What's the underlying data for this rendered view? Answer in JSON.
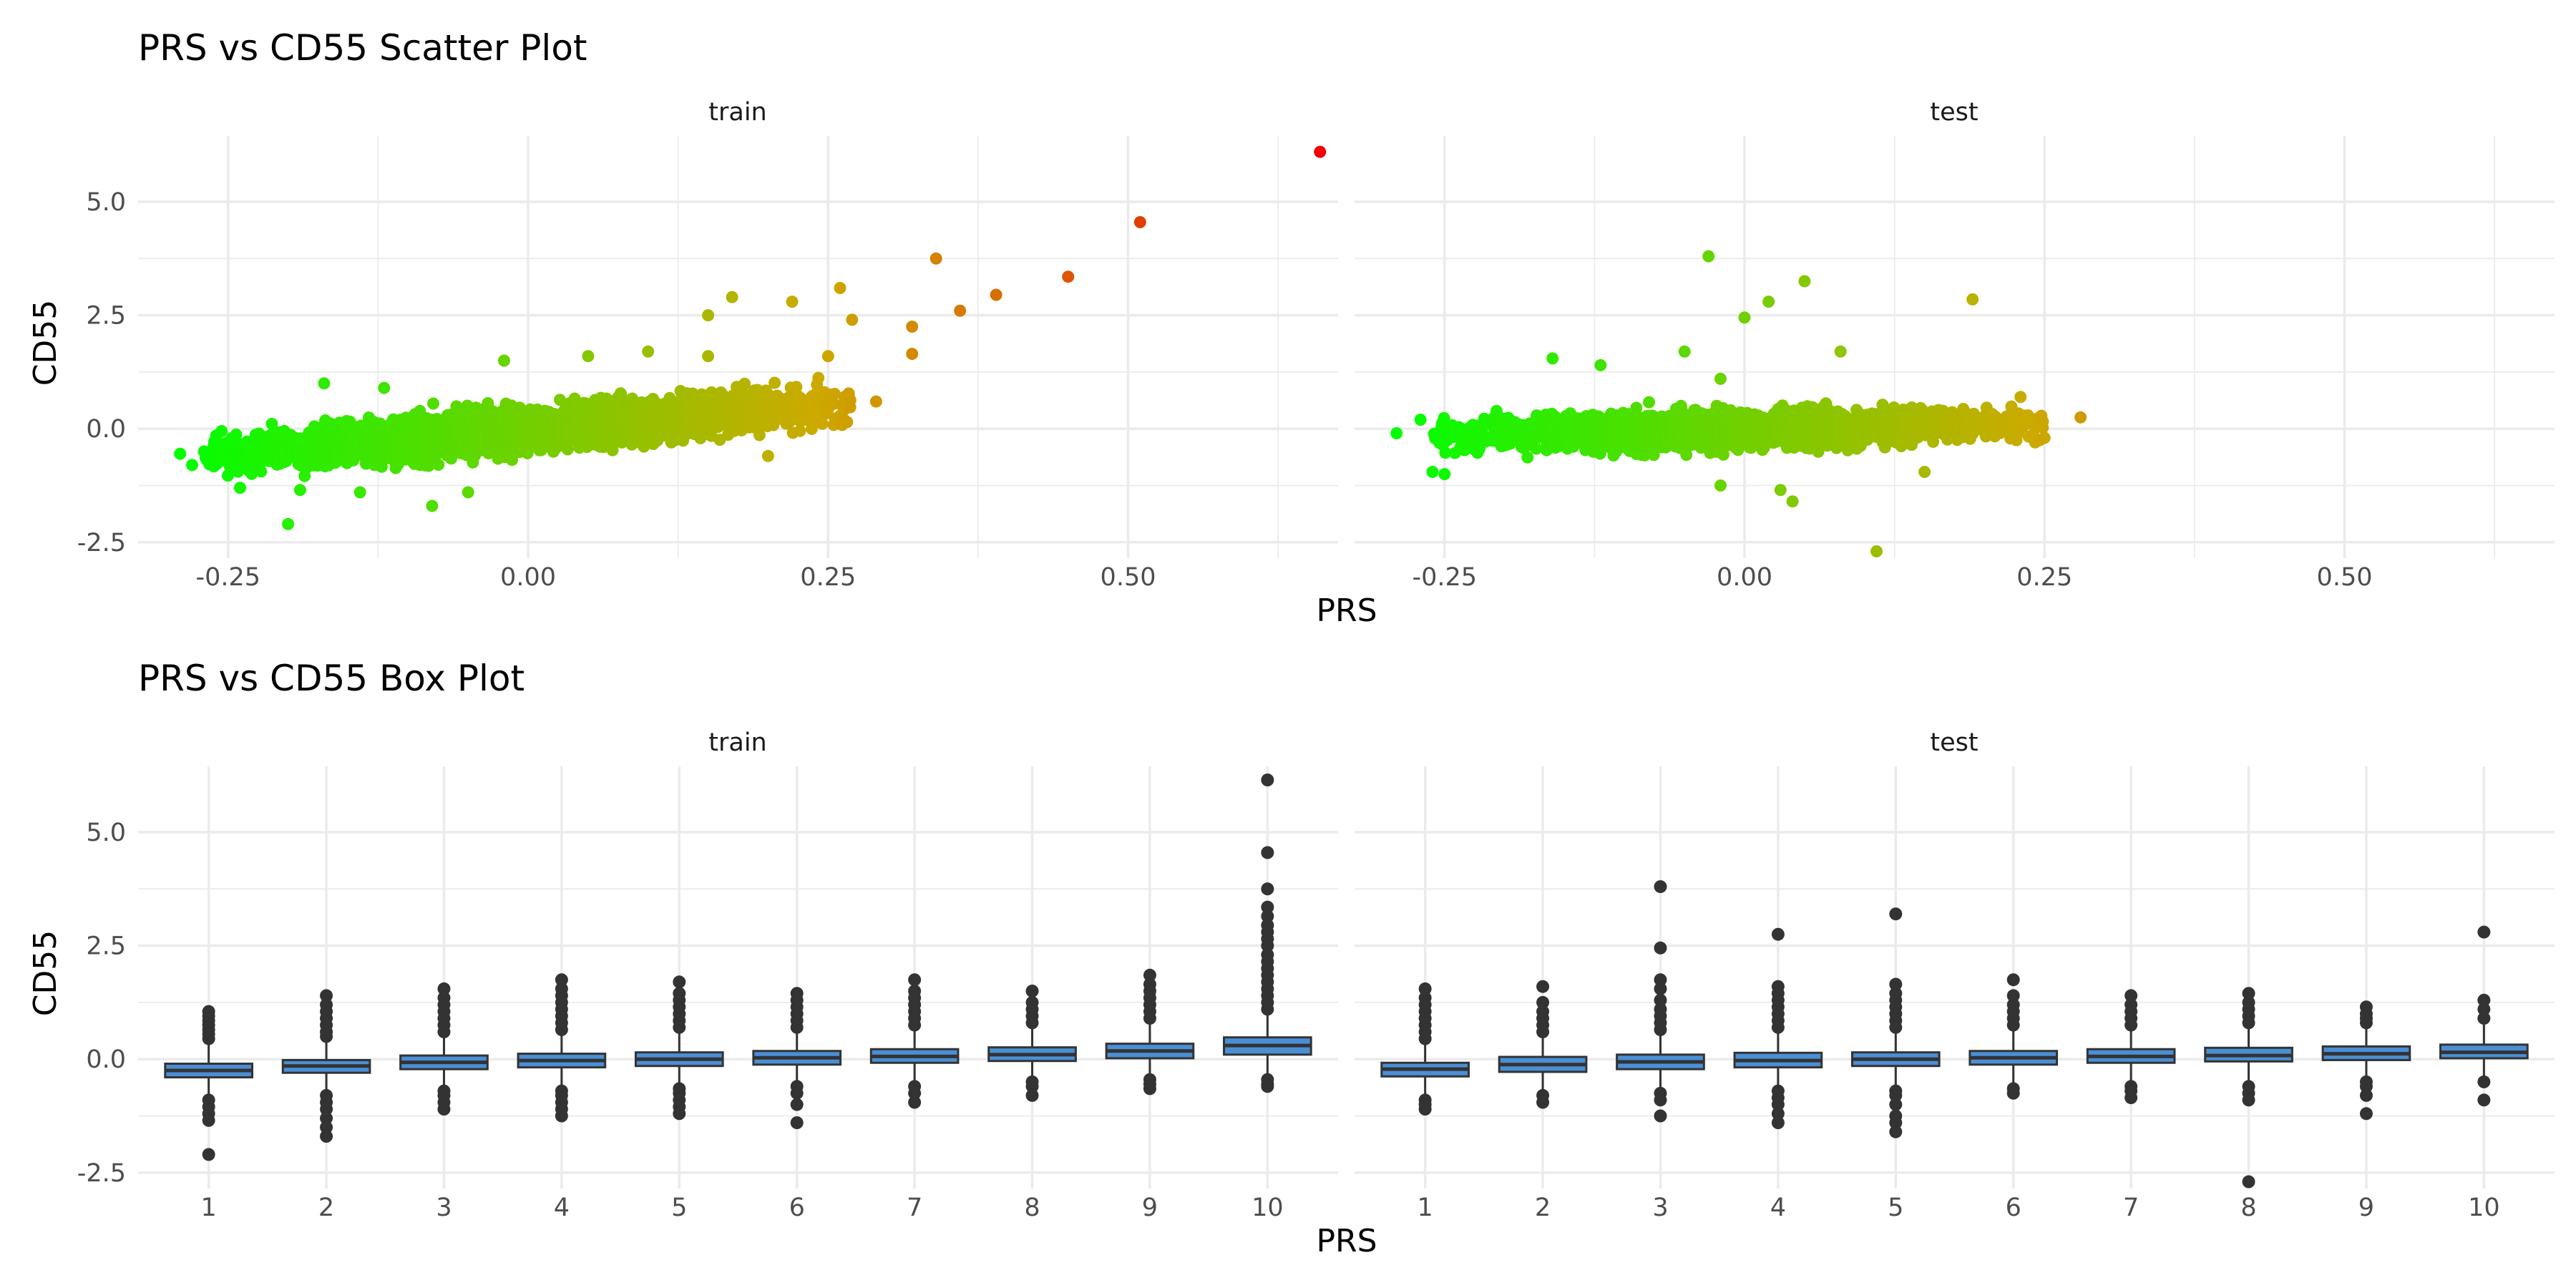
{
  "chart_data": [
    {
      "type": "scatter",
      "title": "PRS vs CD55 Scatter Plot",
      "xlabel": "PRS",
      "ylabel": "CD55",
      "facets": [
        "train",
        "test"
      ],
      "xlim": [
        -0.325,
        0.675
      ],
      "ylim": [
        -2.85,
        6.45
      ],
      "x_ticks": [
        "-0.25",
        "0.00",
        "0.25",
        "0.50"
      ],
      "y_ticks": [
        "-2.5",
        "0.0",
        "2.5",
        "5.0"
      ],
      "color_scale": {
        "low": "#00ff00",
        "mid": "#ccaa00",
        "high": "#ee0000",
        "by": "PRS"
      },
      "grid": true,
      "legend": "none",
      "series": [
        {
          "facet": "train",
          "cloud": {
            "x_range": [
              -0.27,
              0.27
            ],
            "slope": 2.2,
            "intercept": 0.0,
            "spread": 0.42,
            "n": 3000
          },
          "points": [
            [
              -0.29,
              -0.55
            ],
            [
              -0.27,
              -0.5
            ],
            [
              -0.28,
              -0.8
            ],
            [
              -0.25,
              -0.3
            ],
            [
              -0.24,
              -1.3
            ],
            [
              -0.2,
              -2.1
            ],
            [
              -0.19,
              -1.35
            ],
            [
              -0.17,
              1.0
            ],
            [
              -0.14,
              -1.4
            ],
            [
              -0.12,
              0.9
            ],
            [
              -0.08,
              -1.7
            ],
            [
              -0.05,
              -1.4
            ],
            [
              -0.02,
              1.5
            ],
            [
              0.05,
              1.6
            ],
            [
              0.1,
              1.7
            ],
            [
              0.15,
              1.6
            ],
            [
              0.17,
              2.9
            ],
            [
              0.15,
              2.5
            ],
            [
              0.22,
              2.8
            ],
            [
              0.26,
              3.1
            ],
            [
              0.27,
              2.4
            ],
            [
              0.25,
              1.6
            ],
            [
              0.2,
              -0.6
            ],
            [
              0.29,
              0.6
            ],
            [
              0.32,
              2.25
            ],
            [
              0.32,
              1.65
            ],
            [
              0.34,
              3.75
            ],
            [
              0.36,
              2.6
            ],
            [
              0.39,
              2.95
            ],
            [
              0.45,
              3.35
            ],
            [
              0.51,
              4.55
            ],
            [
              0.66,
              6.1
            ]
          ]
        },
        {
          "facet": "test",
          "cloud": {
            "x_range": [
              -0.26,
              0.25
            ],
            "slope": 0.5,
            "intercept": 0.0,
            "spread": 0.36,
            "n": 2200
          },
          "points": [
            [
              -0.29,
              -0.1
            ],
            [
              -0.27,
              0.2
            ],
            [
              -0.26,
              -0.95
            ],
            [
              -0.25,
              -1.0
            ],
            [
              -0.16,
              1.55
            ],
            [
              -0.12,
              1.4
            ],
            [
              -0.05,
              1.7
            ],
            [
              -0.03,
              3.8
            ],
            [
              -0.02,
              1.1
            ],
            [
              -0.02,
              -1.25
            ],
            [
              0.0,
              2.45
            ],
            [
              0.02,
              2.8
            ],
            [
              0.05,
              3.25
            ],
            [
              0.03,
              -1.35
            ],
            [
              0.04,
              -1.6
            ],
            [
              0.08,
              1.7
            ],
            [
              0.11,
              -2.7
            ],
            [
              0.19,
              2.85
            ],
            [
              0.15,
              -0.95
            ],
            [
              0.23,
              0.7
            ],
            [
              0.25,
              -0.2
            ],
            [
              0.28,
              0.25
            ]
          ]
        }
      ]
    },
    {
      "type": "box",
      "title": "PRS vs CD55 Box Plot",
      "xlabel": "PRS",
      "ylabel": "CD55",
      "facets": [
        "train",
        "test"
      ],
      "categories": [
        "1",
        "2",
        "3",
        "4",
        "5",
        "6",
        "7",
        "8",
        "9",
        "10"
      ],
      "ylim": [
        -2.85,
        6.45
      ],
      "y_ticks": [
        "-2.5",
        "0.0",
        "2.5",
        "5.0"
      ],
      "box_fill": "#4a8fd6",
      "grid": true,
      "legend": "none",
      "series": [
        {
          "facet": "train",
          "boxes": [
            {
              "q1": -0.4,
              "median": -0.25,
              "q3": -0.1,
              "lo": -0.85,
              "hi": 0.35,
              "outliers_low": [
                -0.9,
                -1.05,
                -1.2,
                -1.35,
                -2.1
              ],
              "outliers_high": [
                0.45,
                0.55,
                0.65,
                0.75,
                0.85,
                0.95,
                1.05
              ]
            },
            {
              "q1": -0.3,
              "median": -0.15,
              "q3": -0.02,
              "lo": -0.72,
              "hi": 0.4,
              "outliers_low": [
                -0.8,
                -0.95,
                -1.1,
                -1.3,
                -1.5,
                -1.7
              ],
              "outliers_high": [
                0.5,
                0.6,
                0.75,
                0.9,
                1.05,
                1.2,
                1.4
              ]
            },
            {
              "q1": -0.22,
              "median": -0.07,
              "q3": 0.08,
              "lo": -0.65,
              "hi": 0.5,
              "outliers_low": [
                -0.7,
                -0.8,
                -0.95,
                -1.1
              ],
              "outliers_high": [
                0.6,
                0.75,
                0.9,
                1.05,
                1.2,
                1.35,
                1.55
              ]
            },
            {
              "q1": -0.18,
              "median": -0.03,
              "q3": 0.12,
              "lo": -0.62,
              "hi": 0.55,
              "outliers_low": [
                -0.7,
                -0.8,
                -0.95,
                -1.1,
                -1.25
              ],
              "outliers_high": [
                0.65,
                0.8,
                0.95,
                1.1,
                1.25,
                1.4,
                1.55,
                1.75
              ]
            },
            {
              "q1": -0.15,
              "median": 0.0,
              "q3": 0.15,
              "lo": -0.6,
              "hi": 0.6,
              "outliers_low": [
                -0.65,
                -0.75,
                -0.9,
                -1.05,
                -1.2
              ],
              "outliers_high": [
                0.7,
                0.85,
                1.0,
                1.15,
                1.3,
                1.45,
                1.7
              ]
            },
            {
              "q1": -0.12,
              "median": 0.03,
              "q3": 0.18,
              "lo": -0.55,
              "hi": 0.62,
              "outliers_low": [
                -0.6,
                -0.75,
                -1.0,
                -1.4
              ],
              "outliers_high": [
                0.7,
                0.85,
                1.0,
                1.15,
                1.3,
                1.45
              ]
            },
            {
              "q1": -0.08,
              "median": 0.06,
              "q3": 0.22,
              "lo": -0.5,
              "hi": 0.68,
              "outliers_low": [
                -0.6,
                -0.75,
                -0.95
              ],
              "outliers_high": [
                0.75,
                0.9,
                1.05,
                1.2,
                1.35,
                1.5,
                1.75
              ]
            },
            {
              "q1": -0.04,
              "median": 0.1,
              "q3": 0.26,
              "lo": -0.45,
              "hi": 0.72,
              "outliers_low": [
                -0.5,
                -0.6,
                -0.8
              ],
              "outliers_high": [
                0.8,
                0.95,
                1.1,
                1.25,
                1.5
              ]
            },
            {
              "q1": 0.02,
              "median": 0.18,
              "q3": 0.34,
              "lo": -0.38,
              "hi": 0.8,
              "outliers_low": [
                -0.45,
                -0.55,
                -0.65
              ],
              "outliers_high": [
                0.9,
                1.05,
                1.2,
                1.35,
                1.5,
                1.65,
                1.85
              ]
            },
            {
              "q1": 0.1,
              "median": 0.3,
              "q3": 0.48,
              "lo": -0.35,
              "hi": 1.0,
              "outliers_low": [
                -0.45,
                -0.55,
                -0.6
              ],
              "outliers_high": [
                1.1,
                1.25,
                1.4,
                1.55,
                1.7,
                1.85,
                2.0,
                2.15,
                2.3,
                2.5,
                2.65,
                2.8,
                2.95,
                3.15,
                3.35,
                3.75,
                4.55,
                6.15
              ]
            }
          ]
        },
        {
          "facet": "test",
          "boxes": [
            {
              "q1": -0.38,
              "median": -0.22,
              "q3": -0.08,
              "lo": -0.82,
              "hi": 0.38,
              "outliers_low": [
                -0.9,
                -1.0,
                -1.1
              ],
              "outliers_high": [
                0.45,
                0.6,
                0.75,
                0.9,
                1.05,
                1.2,
                1.35,
                1.55
              ]
            },
            {
              "q1": -0.28,
              "median": -0.12,
              "q3": 0.05,
              "lo": -0.75,
              "hi": 0.48,
              "outliers_low": [
                -0.8,
                -0.95
              ],
              "outliers_high": [
                0.6,
                0.75,
                0.9,
                1.05,
                1.25,
                1.6
              ]
            },
            {
              "q1": -0.22,
              "median": -0.06,
              "q3": 0.1,
              "lo": -0.7,
              "hi": 0.55,
              "outliers_low": [
                -0.75,
                -0.9,
                -1.25
              ],
              "outliers_high": [
                0.65,
                0.8,
                0.95,
                1.1,
                1.3,
                1.55,
                1.75,
                2.45,
                3.8
              ]
            },
            {
              "q1": -0.18,
              "median": -0.03,
              "q3": 0.14,
              "lo": -0.66,
              "hi": 0.6,
              "outliers_low": [
                -0.7,
                -0.85,
                -1.0,
                -1.2,
                -1.4
              ],
              "outliers_high": [
                0.7,
                0.85,
                1.0,
                1.15,
                1.3,
                1.45,
                1.6,
                2.75
              ]
            },
            {
              "q1": -0.15,
              "median": 0.0,
              "q3": 0.15,
              "lo": -0.6,
              "hi": 0.6,
              "outliers_low": [
                -0.7,
                -0.8,
                -1.0,
                -1.25,
                -1.4,
                -1.6
              ],
              "outliers_high": [
                0.7,
                0.85,
                1.0,
                1.15,
                1.3,
                1.45,
                1.65,
                3.2
              ]
            },
            {
              "q1": -0.12,
              "median": 0.03,
              "q3": 0.18,
              "lo": -0.58,
              "hi": 0.64,
              "outliers_low": [
                -0.65,
                -0.75
              ],
              "outliers_high": [
                0.75,
                0.9,
                1.05,
                1.2,
                1.4,
                1.75
              ]
            },
            {
              "q1": -0.08,
              "median": 0.06,
              "q3": 0.22,
              "lo": -0.52,
              "hi": 0.68,
              "outliers_low": [
                -0.6,
                -0.7,
                -0.85
              ],
              "outliers_high": [
                0.75,
                0.9,
                1.05,
                1.2,
                1.4
              ]
            },
            {
              "q1": -0.05,
              "median": 0.08,
              "q3": 0.25,
              "lo": -0.5,
              "hi": 0.72,
              "outliers_low": [
                -0.6,
                -0.75,
                -0.9,
                -2.7
              ],
              "outliers_high": [
                0.8,
                0.95,
                1.1,
                1.25,
                1.45
              ]
            },
            {
              "q1": -0.02,
              "median": 0.12,
              "q3": 0.28,
              "lo": -0.45,
              "hi": 0.74,
              "outliers_low": [
                -0.5,
                -0.6,
                -0.8,
                -1.2
              ],
              "outliers_high": [
                0.8,
                0.9,
                1.0,
                1.15
              ]
            },
            {
              "q1": 0.02,
              "median": 0.15,
              "q3": 0.32,
              "lo": -0.4,
              "hi": 0.78,
              "outliers_low": [
                -0.5,
                -0.9
              ],
              "outliers_high": [
                0.9,
                1.1,
                1.3,
                2.8
              ]
            }
          ]
        }
      ]
    }
  ]
}
